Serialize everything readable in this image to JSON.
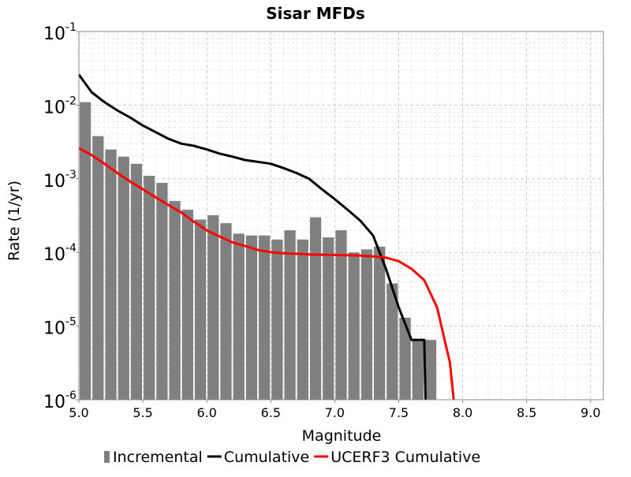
{
  "chart_data": {
    "type": "bar",
    "title": "Sisar MFDs",
    "xlabel": "Magnitude",
    "ylabel": "Rate (1/yr)",
    "yscale": "log",
    "xlim": [
      5.0,
      9.1
    ],
    "ylim": [
      1e-06,
      0.1
    ],
    "grid": true,
    "legend_position": "bottom",
    "x_ticks": [
      "5.0",
      "5.5",
      "6.0",
      "6.5",
      "7.0",
      "7.5",
      "8.0",
      "8.5",
      "9.0"
    ],
    "y_ticks": [
      {
        "base": "10",
        "exp": "-1"
      },
      {
        "base": "10",
        "exp": "-2"
      },
      {
        "base": "10",
        "exp": "-3"
      },
      {
        "base": "10",
        "exp": "-4"
      },
      {
        "base": "10",
        "exp": "-5"
      },
      {
        "base": "10",
        "exp": "-6"
      }
    ],
    "series": [
      {
        "name": "Incremental",
        "kind": "bar",
        "color": "#808080",
        "x": [
          5.05,
          5.15,
          5.25,
          5.35,
          5.45,
          5.55,
          5.65,
          5.75,
          5.85,
          5.95,
          6.05,
          6.15,
          6.25,
          6.35,
          6.45,
          6.55,
          6.65,
          6.75,
          6.85,
          6.95,
          7.05,
          7.15,
          7.25,
          7.35,
          7.45,
          7.55,
          7.65,
          7.75
        ],
        "values": [
          0.011,
          0.0038,
          0.0025,
          0.002,
          0.0016,
          0.0011,
          0.00088,
          0.0005,
          0.00038,
          0.00028,
          0.00032,
          0.00025,
          0.00018,
          0.00017,
          0.00017,
          0.00015,
          0.0002,
          0.00015,
          0.0003,
          0.00016,
          0.0002,
          0.0001,
          0.00011,
          0.00012,
          3.8e-05,
          1.3e-05,
          6.5e-06,
          6.5e-06
        ]
      },
      {
        "name": "Cumulative",
        "kind": "line",
        "color": "#000000",
        "x": [
          5.0,
          5.1,
          5.2,
          5.3,
          5.4,
          5.5,
          5.6,
          5.7,
          5.8,
          5.9,
          6.0,
          6.1,
          6.2,
          6.3,
          6.4,
          6.5,
          6.6,
          6.7,
          6.8,
          6.9,
          7.0,
          7.1,
          7.2,
          7.3,
          7.4,
          7.5,
          7.6,
          7.7,
          7.7,
          7.71
        ],
        "values": [
          0.026,
          0.015,
          0.011,
          0.0085,
          0.0068,
          0.0053,
          0.0043,
          0.0035,
          0.003,
          0.0028,
          0.0025,
          0.0022,
          0.002,
          0.0018,
          0.0017,
          0.0016,
          0.0014,
          0.0012,
          0.001,
          0.00072,
          0.00053,
          0.00038,
          0.00027,
          0.00017,
          6e-05,
          1.8e-05,
          6.5e-06,
          6.5e-06,
          6.5e-06,
          1e-06
        ]
      },
      {
        "name": "UCERF3 Cumulative",
        "kind": "line",
        "color": "#ff0000",
        "x": [
          5.0,
          5.1,
          5.2,
          5.3,
          5.4,
          5.5,
          5.6,
          5.7,
          5.8,
          5.9,
          6.0,
          6.1,
          6.2,
          6.3,
          6.4,
          6.5,
          6.6,
          6.7,
          6.8,
          6.9,
          7.0,
          7.1,
          7.2,
          7.3,
          7.4,
          7.5,
          7.6,
          7.7,
          7.8,
          7.9,
          7.93
        ],
        "values": [
          0.0026,
          0.0021,
          0.0016,
          0.0012,
          0.00092,
          0.00072,
          0.00056,
          0.00044,
          0.00035,
          0.00026,
          0.0002,
          0.000165,
          0.000137,
          0.000122,
          0.000108,
          0.000101,
          9.75e-05,
          9.6e-05,
          9.4e-05,
          9.3e-05,
          9.25e-05,
          9.15e-05,
          9.05e-05,
          8.85e-05,
          8.5e-05,
          7.6e-05,
          6e-05,
          4.2e-05,
          1.8e-05,
          3.2e-06,
          1e-06
        ]
      }
    ]
  }
}
